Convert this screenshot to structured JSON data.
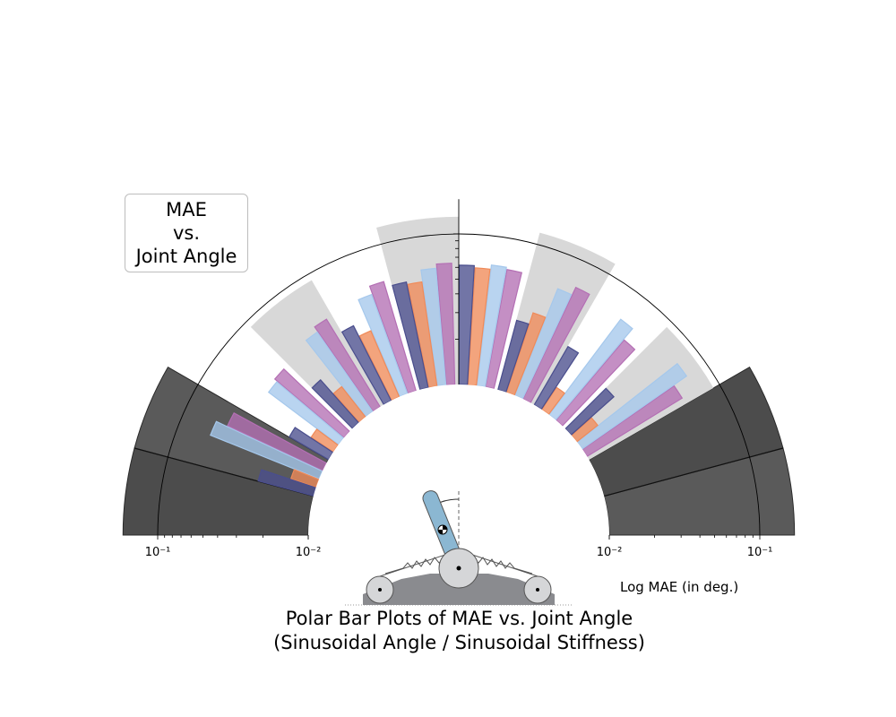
{
  "chart_data": {
    "type": "polar-bar",
    "title": "Polar Bar Plots of MAE vs. Joint Angle",
    "subtitle": "(Sinusoidal Angle / Sinusoidal Stiffness)",
    "annotation": "MAE vs. Joint Angle",
    "annotation_lines": [
      "MAE",
      "vs.",
      "Joint Angle"
    ],
    "radial_label": "Log MAE (in deg.)",
    "radial_scale": "log",
    "radial_range": [
      0.01,
      0.17
    ],
    "radial_ticks": [
      0.1,
      0.01,
      0.01,
      0.1
    ],
    "radial_tick_labels": [
      "10⁻¹",
      "10⁻²",
      "10⁻²",
      "10⁻¹"
    ],
    "angle_range_deg": [
      0,
      180
    ],
    "series_colors": [
      "#b46fb4",
      "#a5c8ec",
      "#f08a58",
      "#4a4e8d"
    ],
    "background_sectors": [
      {
        "start_deg": 0,
        "end_deg": 15,
        "value": 0.17,
        "shade": "dark"
      },
      {
        "start_deg": 15,
        "end_deg": 30,
        "value": 0.17,
        "shade": "dark"
      },
      {
        "start_deg": 30,
        "end_deg": 45,
        "value": 0.09,
        "shade": "light"
      },
      {
        "start_deg": 60,
        "end_deg": 75,
        "value": 0.12,
        "shade": "light"
      },
      {
        "start_deg": 90,
        "end_deg": 105,
        "value": 0.13,
        "shade": "light"
      },
      {
        "start_deg": 120,
        "end_deg": 135,
        "value": 0.09,
        "shade": "light"
      },
      {
        "start_deg": 150,
        "end_deg": 165,
        "value": 0.17,
        "shade": "dark"
      },
      {
        "start_deg": 165,
        "end_deg": 180,
        "value": 0.17,
        "shade": "dark"
      }
    ],
    "bars": [
      {
        "angle_deg": 31.5,
        "values": [
          0.055,
          0.07,
          0.015,
          0.024
        ]
      },
      {
        "angle_deg": 46.5,
        "values": [
          0.05,
          0.062,
          0.015,
          0.028
        ]
      },
      {
        "angle_deg": 61.5,
        "values": [
          0.066,
          0.058,
          0.036,
          0.03
        ]
      },
      {
        "angle_deg": 76.5,
        "values": [
          0.062,
          0.064,
          0.06,
          0.062
        ]
      },
      {
        "angle_deg": 91.5,
        "values": [
          0.064,
          0.06,
          0.05,
          0.052
        ]
      },
      {
        "angle_deg": 106.5,
        "values": [
          0.057,
          0.05,
          0.03,
          0.036
        ]
      },
      {
        "angle_deg": 121.5,
        "values": [
          0.048,
          0.044,
          0.018,
          0.024
        ]
      },
      {
        "angle_deg": 136.5,
        "values": [
          0.04,
          0.038,
          0.015,
          0.02
        ]
      },
      {
        "angle_deg": 151.5,
        "values": [
          0.05,
          0.06,
          0.015,
          0.024
        ]
      }
    ]
  }
}
